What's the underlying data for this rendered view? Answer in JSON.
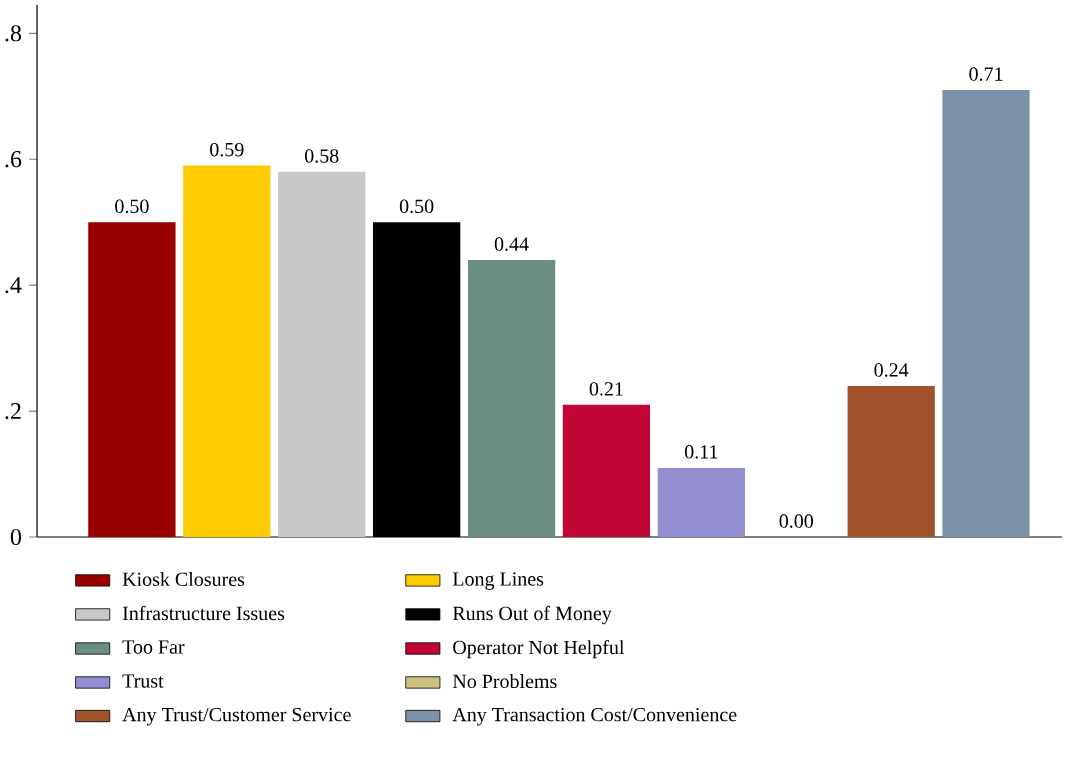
{
  "chart_data": {
    "type": "bar",
    "categories": [
      null,
      null,
      null,
      null,
      null,
      null,
      null,
      null,
      null,
      null
    ],
    "series": [
      {
        "name": "Kiosk Closures",
        "color": "#990000",
        "values": [
          0.5,
          null,
          null,
          null,
          null,
          null,
          null,
          null,
          null,
          null
        ],
        "value_labels": [
          "0.50",
          null,
          null,
          null,
          null,
          null,
          null,
          null,
          null,
          null
        ]
      },
      {
        "name": "Long Lines",
        "color": "#ffcc00",
        "values": [
          null,
          0.59,
          null,
          null,
          null,
          null,
          null,
          null,
          null,
          null
        ],
        "value_labels": [
          null,
          "0.59",
          null,
          null,
          null,
          null,
          null,
          null,
          null,
          null
        ]
      },
      {
        "name": "Infrastructure Issues",
        "color": "#c8c8c8",
        "values": [
          null,
          null,
          0.58,
          null,
          null,
          null,
          null,
          null,
          null,
          null
        ],
        "value_labels": [
          null,
          null,
          "0.58",
          null,
          null,
          null,
          null,
          null,
          null,
          null
        ]
      },
      {
        "name": "Runs Out of Money",
        "color": "#000000",
        "values": [
          null,
          null,
          null,
          0.5,
          null,
          null,
          null,
          null,
          null,
          null
        ],
        "value_labels": [
          null,
          null,
          null,
          "0.50",
          null,
          null,
          null,
          null,
          null,
          null
        ]
      },
      {
        "name": "Too Far",
        "color": "#6b8e80",
        "values": [
          null,
          null,
          null,
          null,
          0.44,
          null,
          null,
          null,
          null,
          null
        ],
        "value_labels": [
          null,
          null,
          null,
          null,
          "0.44",
          null,
          null,
          null,
          null,
          null
        ]
      },
      {
        "name": "Operator Not Helpful",
        "color": "#c10534",
        "values": [
          null,
          null,
          null,
          null,
          null,
          0.21,
          null,
          null,
          null,
          null
        ],
        "value_labels": [
          null,
          null,
          null,
          null,
          null,
          "0.21",
          null,
          null,
          null,
          null
        ]
      },
      {
        "name": "Trust",
        "color": "#938dd2",
        "values": [
          null,
          null,
          null,
          null,
          null,
          null,
          0.11,
          null,
          null,
          null
        ],
        "value_labels": [
          null,
          null,
          null,
          null,
          null,
          null,
          "0.11",
          null,
          null,
          null
        ]
      },
      {
        "name": "No Problems",
        "color": "#cac27e",
        "values": [
          null,
          null,
          null,
          null,
          null,
          null,
          null,
          0.0,
          null,
          null
        ],
        "value_labels": [
          null,
          null,
          null,
          null,
          null,
          null,
          null,
          "0.00",
          null,
          null
        ]
      },
      {
        "name": "Any Trust/Customer Service",
        "color": "#a0522d",
        "values": [
          null,
          null,
          null,
          null,
          null,
          null,
          null,
          null,
          0.24,
          null
        ],
        "value_labels": [
          null,
          null,
          null,
          null,
          null,
          null,
          null,
          null,
          "0.24",
          null
        ]
      },
      {
        "name": "Any Transaction Cost/Convenience",
        "color": "#7b92a8",
        "values": [
          null,
          null,
          null,
          null,
          null,
          null,
          null,
          null,
          null,
          0.71
        ],
        "value_labels": [
          null,
          null,
          null,
          null,
          null,
          null,
          null,
          null,
          null,
          "0.71"
        ]
      }
    ],
    "ylim": [
      0,
      0.845
    ],
    "yticks": [
      0,
      {
        "value": 0.2,
        "label": ".2"
      },
      {
        "value": 0.4,
        "label": ".4"
      },
      {
        "value": 0.6,
        "label": ".6"
      },
      {
        "value": 0.8,
        "label": ".8"
      }
    ],
    "grid": false,
    "legend": "bottom"
  }
}
